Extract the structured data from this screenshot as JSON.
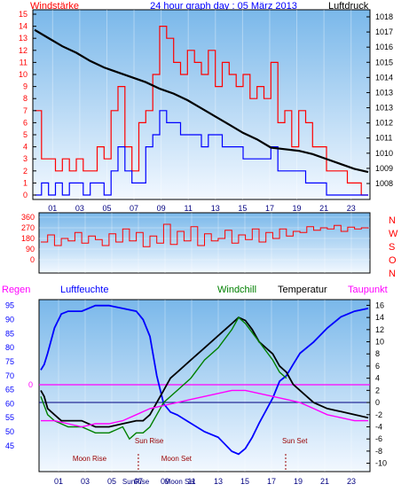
{
  "header": {
    "left_label": "Windstärke",
    "title": "24 hour graph day : 05 März 2013",
    "right_label": "Luftdruck"
  },
  "colors": {
    "red": "#ff0000",
    "blue": "#0000ff",
    "black": "#000000",
    "green": "#008000",
    "magenta": "#ff00ff",
    "navy": "#000080",
    "darkred": "#990000",
    "bg_top": "#7ab8ea",
    "bg_bottom": "#f2f8ff"
  },
  "chart_data": [
    {
      "type": "line",
      "name": "wind-pressure",
      "x_ticks": [
        "01",
        "03",
        "05",
        "07",
        "09",
        "11",
        "13",
        "15",
        "17",
        "19",
        "21",
        "23"
      ],
      "xlim": [
        0,
        24
      ],
      "left_axis": {
        "label": "Windstärke",
        "ticks": [
          "0",
          "1",
          "2",
          "3",
          "4",
          "5",
          "6",
          "7",
          "8",
          "9",
          "10",
          "11",
          "12",
          "13",
          "14",
          "15"
        ],
        "ylim": [
          0,
          15
        ]
      },
      "right_axis": {
        "label": "Luftdruck",
        "ticks": [
          "1008",
          "1009",
          "1010",
          "1011",
          "1012",
          "1013",
          "1013",
          "1014",
          "1015",
          "1016",
          "1017",
          "1018"
        ],
        "ylim": [
          1007.5,
          1018.2
        ]
      },
      "series": [
        {
          "name": "gust",
          "color": "#ff0000",
          "axis": "left",
          "x": [
            0,
            0.5,
            1,
            1.5,
            2,
            2.5,
            3,
            3.5,
            4,
            4.5,
            5,
            5.5,
            6,
            6.5,
            7,
            7.5,
            8,
            8.5,
            9,
            9.5,
            10,
            10.5,
            11,
            11.5,
            12,
            12.5,
            13,
            13.5,
            14,
            14.5,
            15,
            15.5,
            16,
            16.5,
            17,
            17.5,
            18,
            18.5,
            19,
            19.5,
            20,
            20.5,
            21,
            21.5,
            22,
            22.5,
            23,
            23.5,
            24
          ],
          "y": [
            7,
            3,
            3,
            2,
            3,
            2,
            3,
            2,
            2,
            4,
            3,
            7,
            9,
            4,
            2,
            6,
            7,
            10,
            14,
            13,
            11,
            10,
            12,
            11,
            10,
            12,
            9,
            11,
            10,
            9,
            10,
            8,
            9,
            8,
            11,
            6,
            7,
            4,
            7,
            6,
            4,
            4,
            2,
            2,
            2,
            1,
            1,
            0,
            0
          ]
        },
        {
          "name": "wind",
          "color": "#0000ff",
          "axis": "left",
          "x": [
            0,
            0.5,
            1,
            1.5,
            2,
            2.5,
            3,
            3.5,
            4,
            4.5,
            5,
            5.5,
            6,
            6.5,
            7,
            7.5,
            8,
            8.5,
            9,
            9.5,
            10,
            10.5,
            11,
            11.5,
            12,
            12.5,
            13,
            13.5,
            14,
            14.5,
            15,
            15.5,
            16,
            16.5,
            17,
            17.5,
            18,
            18.5,
            19,
            19.5,
            20,
            20.5,
            21,
            21.5,
            22,
            22.5,
            23,
            23.5,
            24
          ],
          "y": [
            0,
            1,
            0,
            1,
            0,
            1,
            1,
            0,
            1,
            1,
            0,
            2,
            4,
            2,
            1,
            1,
            4,
            5,
            7,
            6,
            6,
            5,
            5,
            5,
            4,
            5,
            5,
            4,
            4,
            4,
            3,
            3,
            3,
            3,
            4,
            2,
            2,
            2,
            2,
            1,
            1,
            1,
            0,
            0,
            0,
            0,
            0,
            0,
            0
          ]
        },
        {
          "name": "pressure",
          "color": "#000000",
          "axis": "right",
          "x": [
            0,
            1,
            2,
            3,
            4,
            5,
            6,
            7,
            8,
            9,
            10,
            11,
            12,
            13,
            14,
            15,
            16,
            17,
            18,
            19,
            20,
            21,
            22,
            23,
            24
          ],
          "y": [
            1017.2,
            1016.7,
            1016.2,
            1015.8,
            1015.3,
            1014.9,
            1014.6,
            1014.3,
            1014.0,
            1013.6,
            1013.3,
            1012.9,
            1012.4,
            1011.9,
            1011.4,
            1010.9,
            1010.5,
            1010.0,
            1009.9,
            1009.8,
            1009.6,
            1009.3,
            1009.0,
            1008.7,
            1008.5
          ]
        }
      ]
    },
    {
      "type": "line",
      "name": "wind-direction",
      "xlim": [
        0,
        24
      ],
      "y_ticks": [
        "360",
        "270",
        "180",
        "90",
        "0"
      ],
      "ylim": [
        0,
        360
      ],
      "compass": [
        "N",
        "W",
        "S",
        "O",
        "N"
      ],
      "series": [
        {
          "name": "direction",
          "color": "#ff0000",
          "x": [
            0,
            0.5,
            1,
            1.5,
            2,
            2.5,
            3,
            3.5,
            4,
            4.5,
            5,
            5.5,
            6,
            6.5,
            7,
            7.5,
            8,
            8.5,
            9,
            9.5,
            10,
            10.5,
            11,
            11.5,
            12,
            12.5,
            13,
            13.5,
            14,
            14.5,
            15,
            15.5,
            16,
            16.5,
            17,
            17.5,
            18,
            18.5,
            19,
            19.5,
            20,
            20.5,
            21,
            21.5,
            22,
            22.5,
            23,
            23.5,
            24
          ],
          "y": [
            150,
            210,
            120,
            180,
            160,
            230,
            140,
            200,
            170,
            120,
            220,
            150,
            260,
            160,
            230,
            110,
            200,
            140,
            300,
            130,
            240,
            160,
            280,
            120,
            220,
            160,
            180,
            250,
            140,
            210,
            170,
            260,
            150,
            230,
            180,
            260,
            200,
            240,
            230,
            280,
            250,
            270,
            260,
            290,
            240,
            275,
            260,
            270,
            265
          ]
        }
      ]
    },
    {
      "type": "line",
      "name": "humidity-temperature",
      "x_ticks": [
        "01",
        "03",
        "05",
        "07",
        "09",
        "11",
        "13",
        "15",
        "17",
        "19",
        "21",
        "23"
      ],
      "xlim": [
        0,
        24
      ],
      "left_axis": {
        "labels": [
          "Regen",
          "Luftfeuchte"
        ],
        "ticks": [
          "95",
          "90",
          "85",
          "80",
          "75",
          "70",
          "65",
          "60",
          "55",
          "50",
          "45"
        ],
        "ylim": [
          40.5,
          96.5
        ]
      },
      "rain_zero_label": "0",
      "right_axis": {
        "labels": [
          "Windchill",
          "Temperatur",
          "Taupunkt"
        ],
        "ticks": [
          "16",
          "14",
          "12",
          "10",
          "8",
          "6",
          "4",
          "2",
          "0",
          "-2",
          "-4",
          "-6",
          "-8",
          "-10"
        ],
        "ylim": [
          -10.5,
          16.5
        ]
      },
      "series": [
        {
          "name": "Luftfeuchte",
          "color": "#0000ff",
          "axis": "left",
          "x": [
            0,
            0.25,
            0.5,
            1,
            1.5,
            2,
            3,
            4,
            5,
            6,
            7,
            7.5,
            8,
            8.5,
            9,
            9.5,
            10,
            11,
            12,
            13,
            14,
            14.5,
            15,
            15.5,
            16,
            17,
            17.5,
            18,
            18.5,
            19,
            20,
            21,
            22,
            23,
            24
          ],
          "y": [
            72,
            74,
            78,
            87,
            92,
            93,
            93,
            95,
            95,
            94,
            93,
            90,
            84,
            70,
            60,
            57,
            56,
            53,
            50,
            48,
            43,
            42,
            44,
            48,
            53,
            62,
            68,
            70,
            74,
            78,
            82,
            87,
            91,
            93,
            94
          ]
        },
        {
          "name": "Temperatur",
          "color": "#000000",
          "axis": "right",
          "x": [
            0,
            0.25,
            0.5,
            1,
            1.5,
            2,
            3,
            4,
            5,
            6,
            7,
            7.5,
            8,
            8.5,
            9,
            9.5,
            10,
            11,
            12,
            13,
            14,
            14.5,
            15,
            15.5,
            16,
            17,
            17.5,
            18,
            18.5,
            19,
            20,
            21,
            22,
            23,
            24
          ],
          "y": [
            2,
            1,
            -1,
            -2,
            -3,
            -3,
            -3,
            -4,
            -4,
            -3.5,
            -3,
            -3,
            -2,
            0,
            2,
            4,
            5,
            7,
            9,
            11,
            13,
            14,
            13.5,
            12,
            10,
            8,
            6,
            5,
            3,
            2,
            0,
            -1,
            -1.5,
            -2,
            -2.5
          ]
        },
        {
          "name": "Windchill",
          "color": "#008000",
          "axis": "right",
          "x": [
            0,
            0.5,
            1,
            2,
            3,
            4,
            5,
            6,
            6.5,
            7,
            7.5,
            8,
            8.5,
            9,
            10,
            11,
            12,
            13,
            14,
            14.5,
            15,
            16,
            17,
            17.5,
            18
          ],
          "y": [
            1,
            -2,
            -3,
            -4,
            -4,
            -5,
            -5,
            -4,
            -6,
            -5,
            -5,
            -4,
            -2,
            0,
            2,
            4,
            7,
            9,
            12,
            14,
            13,
            10,
            7,
            5,
            4
          ]
        },
        {
          "name": "Taupunkt",
          "color": "#ff00ff",
          "axis": "right",
          "x": [
            0,
            1,
            2,
            3,
            4,
            5,
            6,
            7,
            8,
            9,
            10,
            11,
            12,
            13,
            14,
            15,
            16,
            17,
            18,
            19,
            20,
            21,
            22,
            23,
            24
          ],
          "y": [
            -3,
            -3,
            -3.5,
            -4,
            -3.5,
            -3.5,
            -3,
            -2,
            -1,
            -0.5,
            0,
            0.5,
            1,
            1.5,
            2,
            2,
            1.5,
            1,
            0.5,
            0,
            -1,
            -2,
            -2.5,
            -3,
            -3
          ]
        }
      ],
      "annotations": [
        {
          "label": "Moon Rise",
          "x": 3.5,
          "marker_label": "Sun Rise",
          "marker_x": 7.15
        },
        {
          "label": "Moon Set",
          "x": 10,
          "marker_label": "Sun Set",
          "marker_x": 17.95
        }
      ],
      "x_overprint": [
        "SunRise",
        "Moon Set"
      ]
    }
  ]
}
